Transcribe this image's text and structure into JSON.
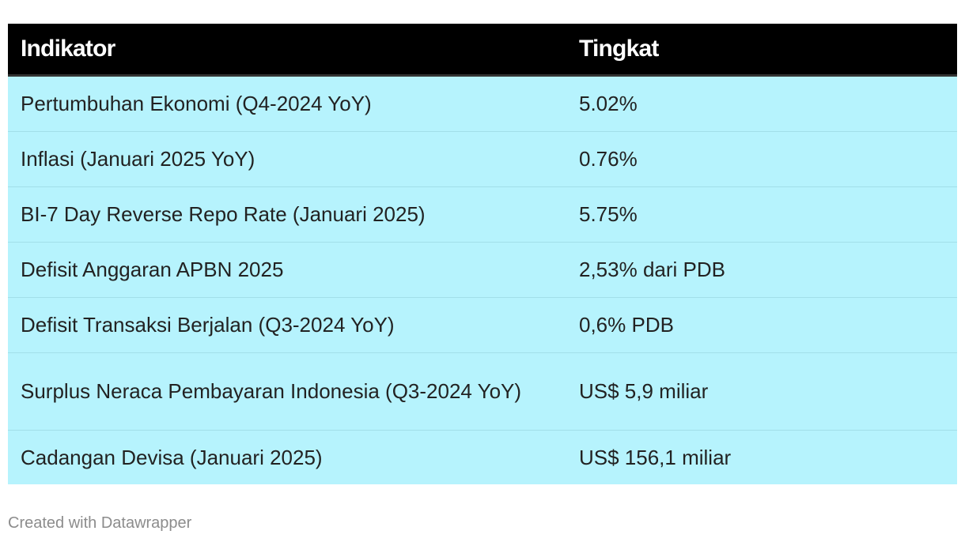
{
  "chart_data": {
    "type": "table",
    "columns": [
      "Indikator",
      "Tingkat"
    ],
    "rows": [
      [
        "Pertumbuhan Ekonomi (Q4-2024 YoY)",
        "5.02%"
      ],
      [
        "Inflasi (Januari 2025 YoY)",
        "0.76%"
      ],
      [
        "BI-7 Day Reverse Repo Rate (Januari 2025)",
        "5.75%"
      ],
      [
        "Defisit Anggaran APBN 2025",
        "2,53% dari PDB"
      ],
      [
        "Defisit Transaksi Berjalan (Q3-2024 YoY)",
        "0,6% PDB"
      ],
      [
        "Surplus Neraca Pembayaran Indonesia (Q3-2024 YoY)",
        "US$ 5,9 miliar"
      ],
      [
        "Cadangan Devisa (Januari 2025)",
        "US$ 156,1 miliar"
      ]
    ]
  },
  "footer": {
    "credit": "Created with Datawrapper"
  },
  "colors": {
    "header_bg": "#000000",
    "header_text": "#ffffff",
    "row_bg": "#b6f3fd",
    "row_text": "#222222",
    "credit_text": "#8c8c8c"
  }
}
